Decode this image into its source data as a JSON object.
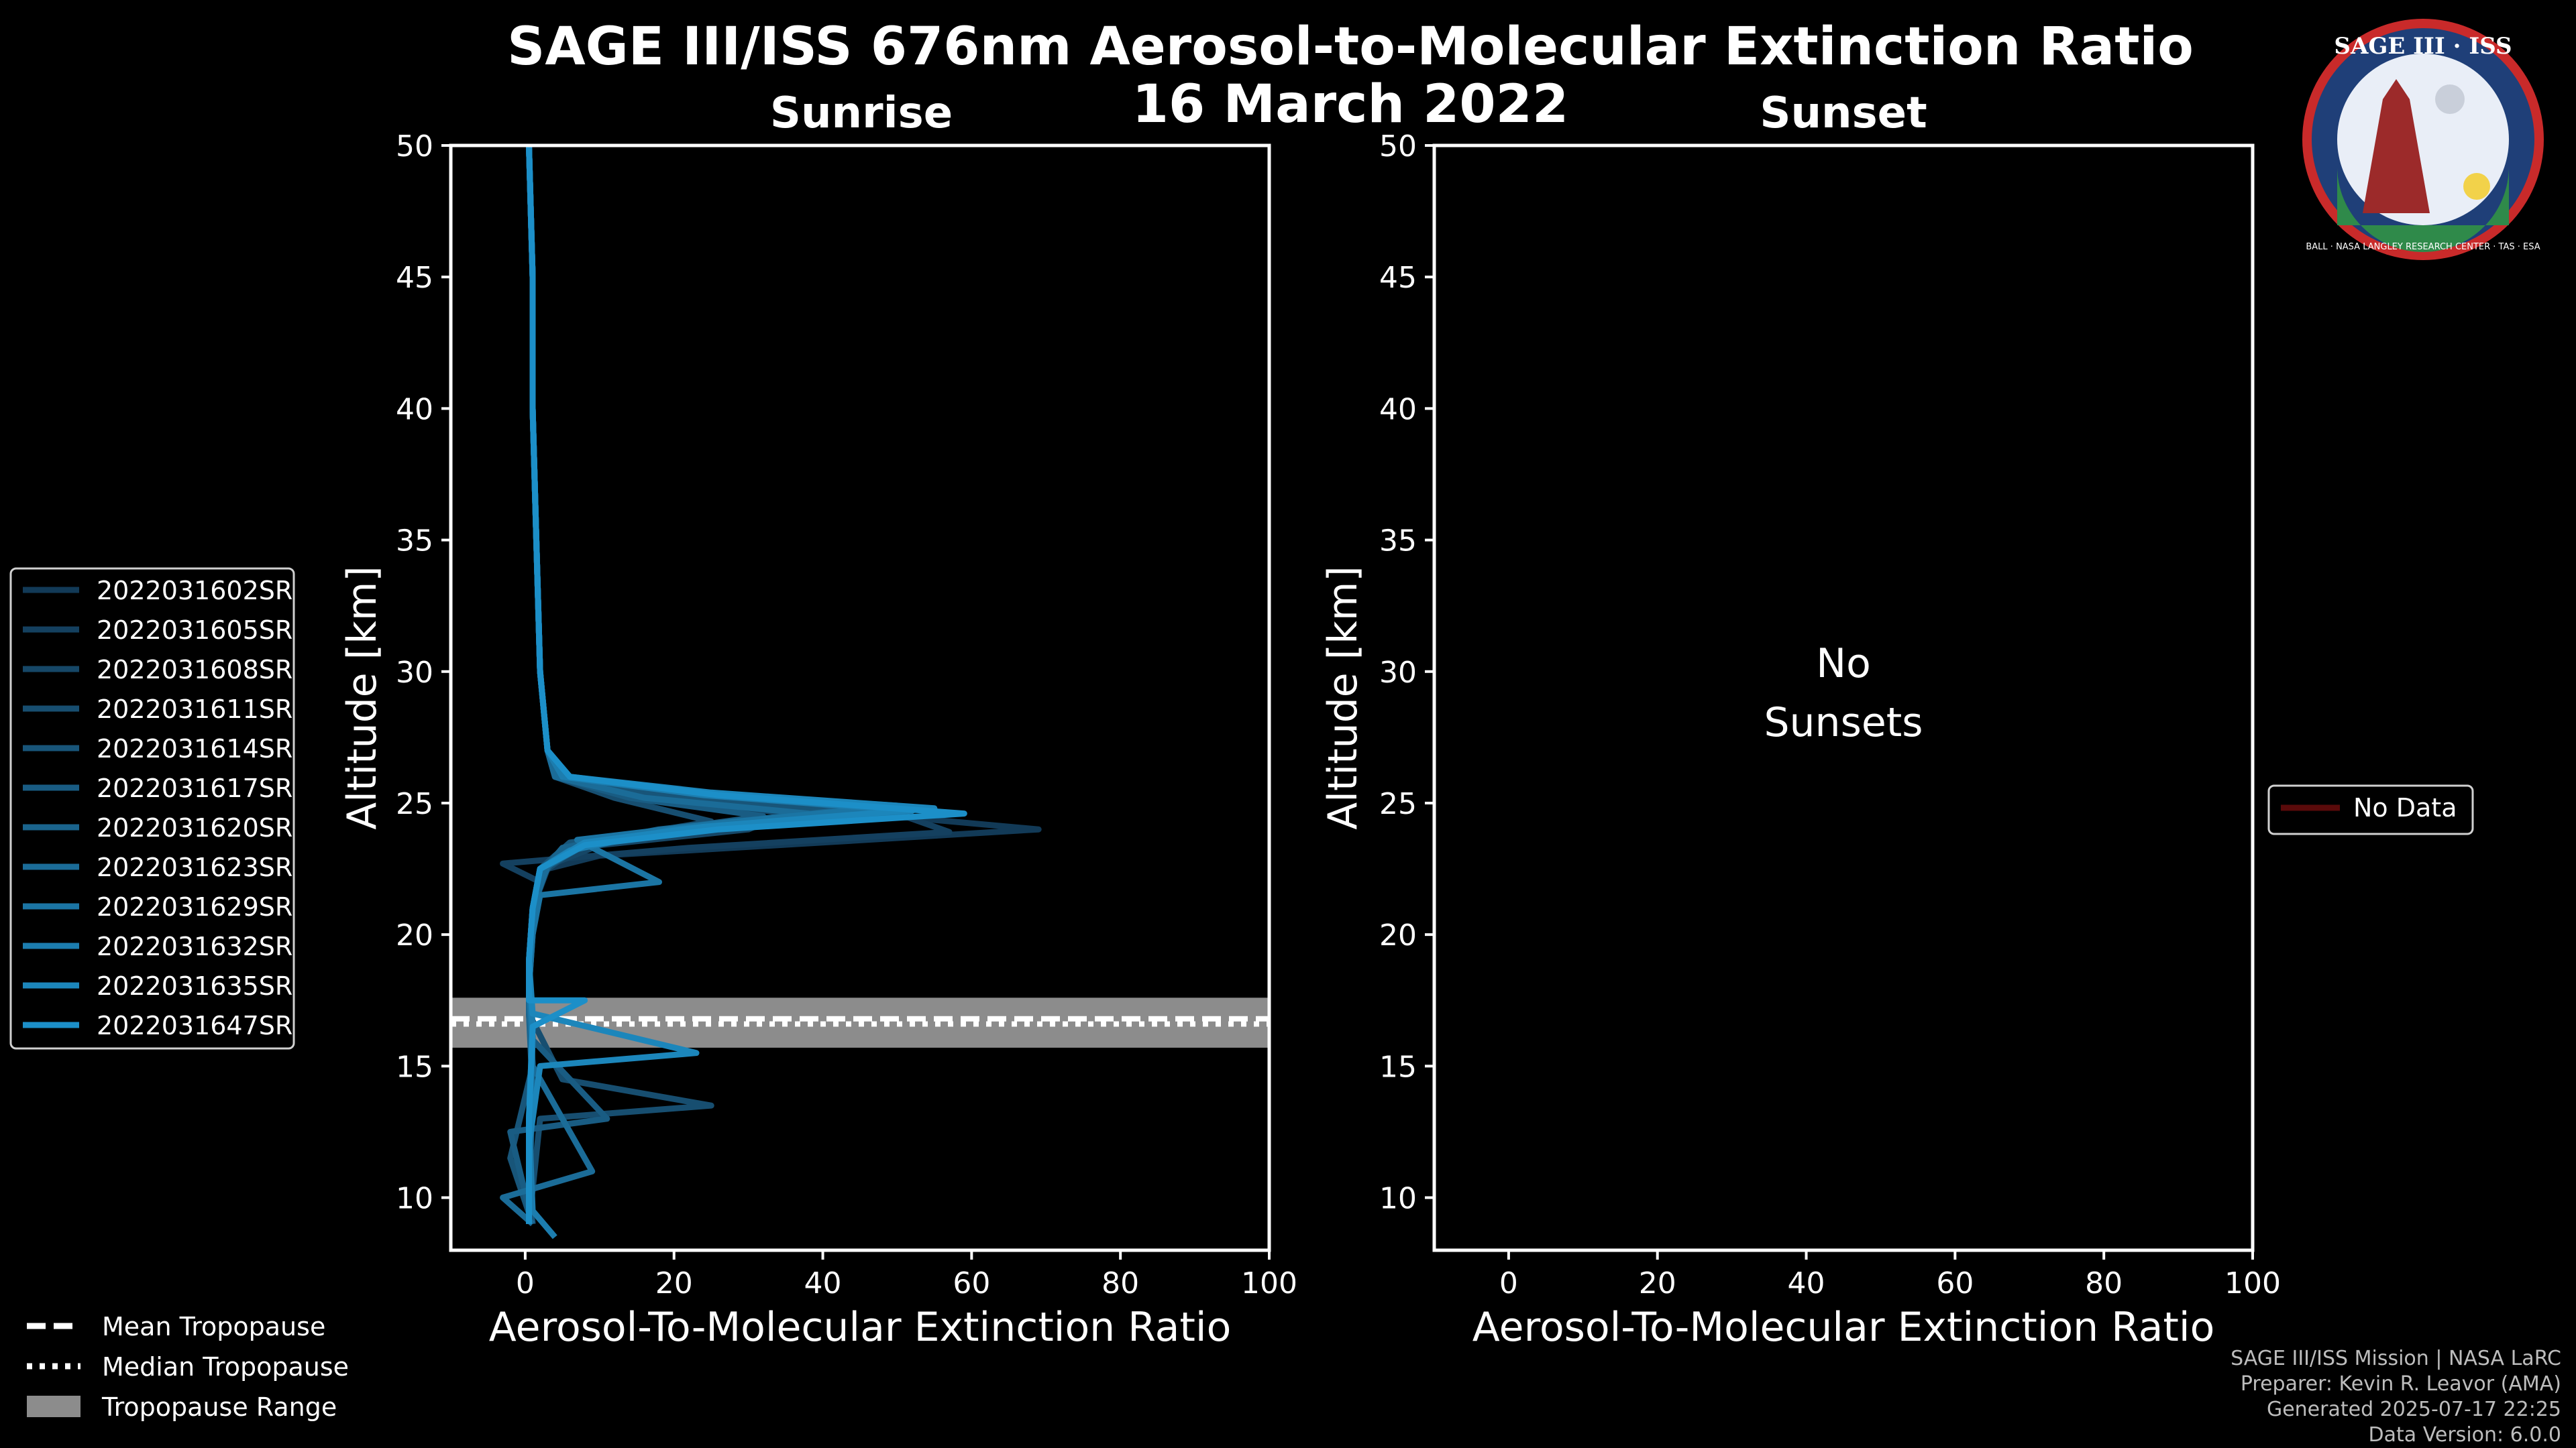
{
  "title": "SAGE III/ISS 676nm Aerosol-to-Molecular Extinction Ratio",
  "date": "16 March 2022",
  "logo": {
    "top": "SAGE III · ISS",
    "ring": "BALL · NASA LANGLEY RESEARCH CENTER · TAS · ESA"
  },
  "credits": [
    "SAGE III/ISS Mission | NASA LaRC",
    "Preparer: Kevin R. Leavor (AMA)",
    "Generated 2025-07-17 22:25",
    "Data Version: 6.0.0"
  ],
  "colors": {
    "background": "#000000",
    "tropo_band": "#8c8c8c",
    "no_data": "#5a0a0a",
    "series": [
      "#123a57",
      "#14405f",
      "#164767",
      "#174e70",
      "#185579",
      "#195c83",
      "#1a648d",
      "#1b6c98",
      "#1b75a4",
      "#1c7daf",
      "#1c86bb",
      "#1c8fc8"
    ]
  },
  "chart_data": [
    {
      "type": "line",
      "panel": "sunrise",
      "title": "Sunrise",
      "xlabel": "Aerosol-To-Molecular Extinction Ratio",
      "ylabel": "Altitude [km]",
      "xlim": [
        -10,
        100
      ],
      "ylim": [
        8,
        50
      ],
      "xticks": [
        0,
        20,
        40,
        60,
        80,
        100
      ],
      "yticks": [
        10,
        15,
        20,
        25,
        30,
        35,
        40,
        45,
        50
      ],
      "tropopause": {
        "mean": 16.8,
        "median": 16.6,
        "range": [
          15.7,
          17.6
        ]
      },
      "series": [
        {
          "name": "2022031602SR",
          "points": [
            [
              0.5,
              50
            ],
            [
              1,
              45
            ],
            [
              1,
              40
            ],
            [
              1.5,
              35
            ],
            [
              2,
              30
            ],
            [
              3,
              27
            ],
            [
              4,
              26
            ],
            [
              10,
              25.5
            ],
            [
              30,
              25
            ],
            [
              69,
              24
            ],
            [
              40,
              23.5
            ],
            [
              10,
              23
            ],
            [
              3,
              22.5
            ],
            [
              1,
              21
            ],
            [
              0.5,
              19
            ],
            [
              0.5,
              17
            ],
            [
              1,
              15
            ],
            [
              0.5,
              12
            ],
            [
              1,
              9
            ]
          ]
        },
        {
          "name": "2022031605SR",
          "points": [
            [
              0.5,
              50
            ],
            [
              1,
              45
            ],
            [
              1,
              40
            ],
            [
              1.5,
              35
            ],
            [
              2,
              30
            ],
            [
              3,
              27
            ],
            [
              5,
              26
            ],
            [
              20,
              25.3
            ],
            [
              48,
              24.8
            ],
            [
              57,
              23.9
            ],
            [
              22,
              23.3
            ],
            [
              -3,
              22.7
            ],
            [
              2,
              22
            ],
            [
              1,
              20
            ],
            [
              0.5,
              18
            ],
            [
              1,
              16
            ],
            [
              0.5,
              13
            ],
            [
              0.5,
              9
            ]
          ]
        },
        {
          "name": "2022031608SR",
          "points": [
            [
              0.5,
              50
            ],
            [
              1,
              45
            ],
            [
              1,
              40
            ],
            [
              1.5,
              35
            ],
            [
              2,
              30
            ],
            [
              3,
              27
            ],
            [
              4,
              26
            ],
            [
              15,
              25.4
            ],
            [
              35,
              24.6
            ],
            [
              30,
              24
            ],
            [
              10,
              23.4
            ],
            [
              2,
              22.5
            ],
            [
              1,
              21
            ],
            [
              0.5,
              19
            ],
            [
              1,
              16
            ],
            [
              0.5,
              12
            ],
            [
              0.5,
              9
            ]
          ]
        },
        {
          "name": "2022031611SR",
          "points": [
            [
              0.5,
              50
            ],
            [
              1,
              45
            ],
            [
              1,
              40
            ],
            [
              1.5,
              35
            ],
            [
              2,
              30
            ],
            [
              3,
              27
            ],
            [
              4,
              26
            ],
            [
              12,
              25.2
            ],
            [
              25,
              24.3
            ],
            [
              8,
              23.5
            ],
            [
              2,
              22.3
            ],
            [
              1,
              21
            ],
            [
              0.5,
              19
            ],
            [
              0.5,
              17
            ],
            [
              5,
              14.5
            ],
            [
              25,
              13.5
            ],
            [
              2,
              13
            ],
            [
              0.5,
              9
            ]
          ]
        },
        {
          "name": "2022031614SR",
          "points": [
            [
              0.5,
              50
            ],
            [
              1,
              45
            ],
            [
              1,
              40
            ],
            [
              1.5,
              35
            ],
            [
              2,
              30
            ],
            [
              3,
              27
            ],
            [
              5,
              26
            ],
            [
              18,
              25.3
            ],
            [
              42,
              24.7
            ],
            [
              20,
              24
            ],
            [
              6,
              23.5
            ],
            [
              2,
              22.5
            ],
            [
              1,
              21
            ],
            [
              0.5,
              18
            ],
            [
              1,
              15
            ],
            [
              -2,
              11.5
            ],
            [
              1,
              9
            ]
          ]
        },
        {
          "name": "2022031617SR",
          "points": [
            [
              0.5,
              50
            ],
            [
              1,
              45
            ],
            [
              1,
              40
            ],
            [
              1.5,
              35
            ],
            [
              2,
              30
            ],
            [
              3,
              27
            ],
            [
              4,
              26
            ],
            [
              14,
              25.2
            ],
            [
              32,
              24.5
            ],
            [
              14,
              23.8
            ],
            [
              4,
              23
            ],
            [
              2,
              22
            ],
            [
              1,
              20
            ],
            [
              0.5,
              18
            ],
            [
              1,
              16
            ],
            [
              11,
              13
            ],
            [
              -2,
              12.5
            ],
            [
              1,
              9
            ]
          ]
        },
        {
          "name": "2022031620SR",
          "points": [
            [
              0.5,
              50
            ],
            [
              1,
              45
            ],
            [
              1,
              40
            ],
            [
              1.5,
              35
            ],
            [
              2,
              30
            ],
            [
              3,
              27
            ],
            [
              5,
              26
            ],
            [
              20,
              25.5
            ],
            [
              45,
              24.8
            ],
            [
              18,
              24
            ],
            [
              5,
              23.3
            ],
            [
              2,
              22.3
            ],
            [
              1,
              21
            ],
            [
              0.5,
              19
            ],
            [
              0.5,
              17
            ],
            [
              1,
              14
            ],
            [
              0.5,
              10
            ],
            [
              0.5,
              9
            ]
          ]
        },
        {
          "name": "2022031623SR",
          "points": [
            [
              0.5,
              50
            ],
            [
              1,
              45
            ],
            [
              1,
              40
            ],
            [
              1.5,
              35
            ],
            [
              2,
              30
            ],
            [
              3,
              27
            ],
            [
              4,
              26
            ],
            [
              16,
              25.2
            ],
            [
              38,
              24.6
            ],
            [
              22,
              23.9
            ],
            [
              8,
              23.4
            ],
            [
              3,
              22.6
            ],
            [
              1,
              21
            ],
            [
              0.5,
              18
            ],
            [
              1,
              15
            ],
            [
              9,
              11
            ],
            [
              -3,
              10
            ],
            [
              1,
              9
            ]
          ]
        },
        {
          "name": "2022031629SR",
          "points": [
            [
              0.5,
              50
            ],
            [
              1,
              45
            ],
            [
              1,
              40
            ],
            [
              1.5,
              35
            ],
            [
              2,
              30
            ],
            [
              3,
              27
            ],
            [
              5,
              26
            ],
            [
              22,
              25.4
            ],
            [
              50,
              24.9
            ],
            [
              25,
              24.2
            ],
            [
              7,
              23.6
            ],
            [
              18,
              22
            ],
            [
              2,
              21.5
            ],
            [
              1,
              20
            ],
            [
              0.5,
              18
            ],
            [
              1,
              16
            ],
            [
              0.5,
              12
            ],
            [
              0.5,
              9
            ]
          ]
        },
        {
          "name": "2022031632SR",
          "points": [
            [
              0.5,
              50
            ],
            [
              1,
              45
            ],
            [
              1,
              40
            ],
            [
              1.5,
              35
            ],
            [
              2,
              30
            ],
            [
              3,
              27
            ],
            [
              5,
              26
            ],
            [
              24,
              25.3
            ],
            [
              52,
              24.7
            ],
            [
              20,
              24
            ],
            [
              6,
              23.2
            ],
            [
              2,
              22.5
            ],
            [
              1,
              21
            ],
            [
              0.5,
              19
            ],
            [
              1,
              16.5
            ],
            [
              0.5,
              13
            ],
            [
              1,
              9.5
            ],
            [
              4,
              8.5
            ]
          ]
        },
        {
          "name": "2022031635SR",
          "points": [
            [
              0.5,
              50
            ],
            [
              1,
              45
            ],
            [
              1,
              40
            ],
            [
              1.5,
              35
            ],
            [
              2,
              30
            ],
            [
              3,
              27
            ],
            [
              6,
              26
            ],
            [
              25,
              25.4
            ],
            [
              55,
              24.8
            ],
            [
              24,
              24.1
            ],
            [
              8,
              23.5
            ],
            [
              2,
              22.5
            ],
            [
              1,
              21
            ],
            [
              0.5,
              19
            ],
            [
              1,
              17
            ],
            [
              23,
              15.5
            ],
            [
              2,
              15
            ],
            [
              0.5,
              12
            ],
            [
              0.5,
              9
            ]
          ]
        },
        {
          "name": "2022031647SR",
          "points": [
            [
              0.5,
              50
            ],
            [
              1,
              45
            ],
            [
              1,
              40
            ],
            [
              1.5,
              35
            ],
            [
              2,
              30
            ],
            [
              3,
              27
            ],
            [
              6,
              26
            ],
            [
              26,
              25.3
            ],
            [
              59,
              24.6
            ],
            [
              26,
              24
            ],
            [
              8,
              23.4
            ],
            [
              2,
              22.5
            ],
            [
              1,
              21
            ],
            [
              0.5,
              19
            ],
            [
              0.5,
              17.5
            ],
            [
              8,
              17.5
            ],
            [
              1,
              16.5
            ],
            [
              0.5,
              13
            ],
            [
              0.5,
              9
            ]
          ]
        }
      ]
    },
    {
      "type": "line",
      "panel": "sunset",
      "title": "Sunset",
      "xlabel": "Aerosol-To-Molecular Extinction Ratio",
      "ylabel": "Altitude [km]",
      "xlim": [
        -10,
        100
      ],
      "ylim": [
        8,
        50
      ],
      "xticks": [
        0,
        20,
        40,
        60,
        80,
        100
      ],
      "yticks": [
        10,
        15,
        20,
        25,
        30,
        35,
        40,
        45,
        50
      ],
      "annotation": [
        "No",
        "Sunsets"
      ],
      "legend": [
        "No Data"
      ],
      "series": []
    }
  ],
  "legend_left": {
    "tropo_items": [
      "Mean Tropopause",
      "Median Tropopause",
      "Tropopause Range"
    ]
  }
}
